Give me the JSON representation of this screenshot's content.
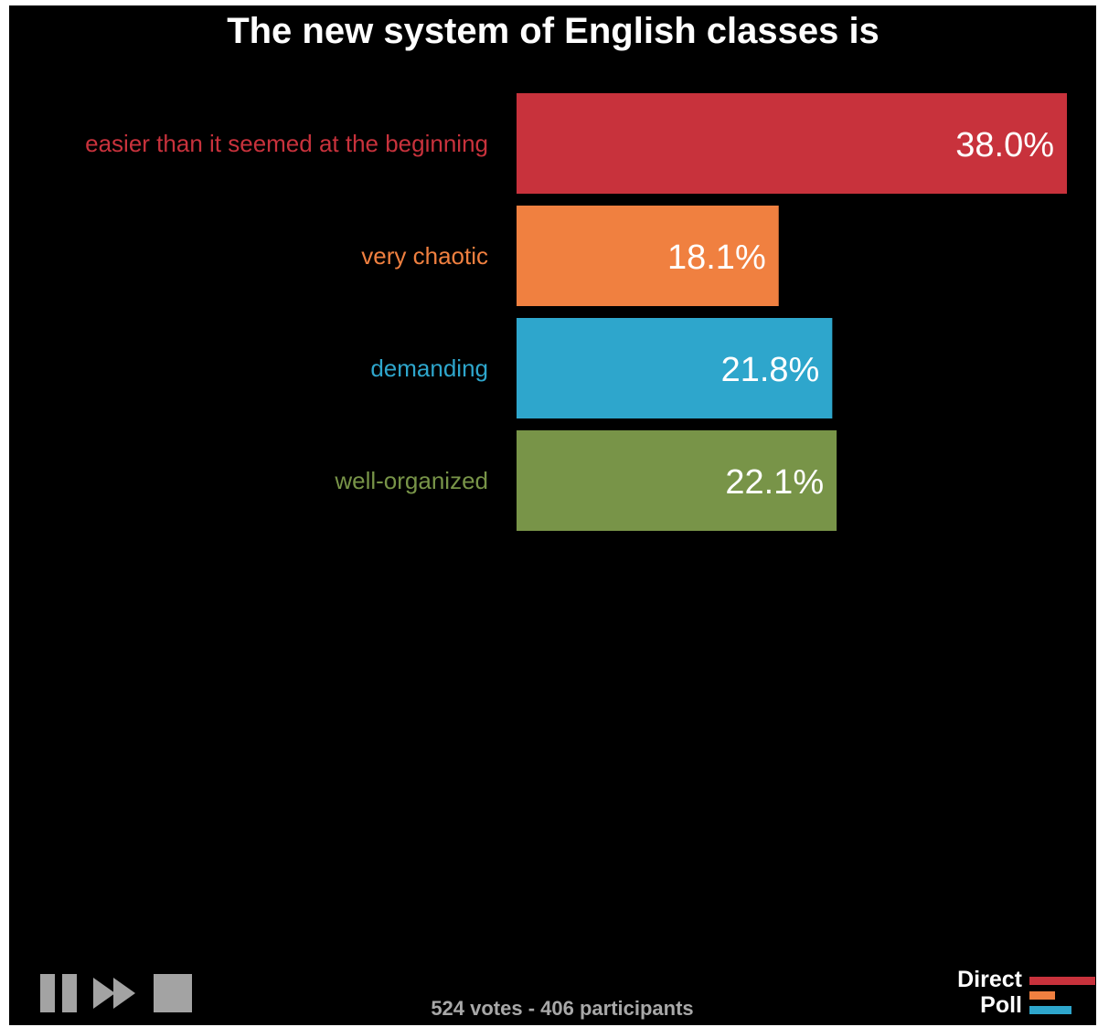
{
  "title": "The new system of English classes is",
  "chart_data": {
    "type": "bar",
    "orientation": "horizontal",
    "categories": [
      "easier than it seemed at the beginning",
      "very chaotic",
      "demanding",
      "well-organized"
    ],
    "values": [
      38.0,
      18.1,
      21.8,
      22.1
    ],
    "value_labels": [
      "38.0%",
      "18.1%",
      "21.8%",
      "22.1%"
    ],
    "colors": [
      "#c8323c",
      "#f08040",
      "#2ea6cc",
      "#789448"
    ],
    "xlim": [
      0,
      38.0
    ]
  },
  "footer": {
    "summary": "524 votes - 406 participants"
  },
  "controls": {
    "pause_icon": "pause-icon",
    "forward_icon": "fast-forward-icon",
    "stop_icon": "stop-icon"
  },
  "logo": {
    "line1": "Direct",
    "line2": "Poll",
    "bar_colors": [
      "#c8323c",
      "#f08040",
      "#2ea6cc"
    ]
  }
}
